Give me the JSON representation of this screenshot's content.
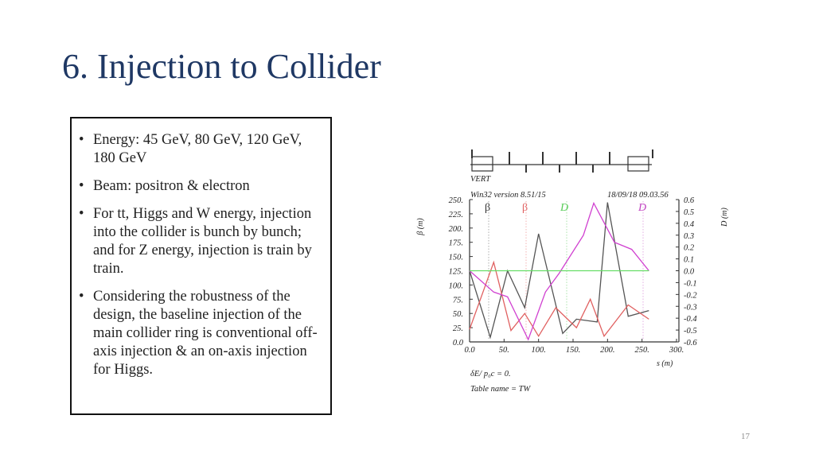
{
  "slide": {
    "title": "6. Injection to Collider",
    "page_number": "17"
  },
  "bullets": [
    "Energy: 45 GeV, 80 GeV, 120 GeV, 180 GeV",
    "Beam: positron & electron",
    "For tt, Higgs and W energy, injection into the collider is bunch by bunch; and for Z energy, injection is train by train.",
    "Considering the robustness of the design, the baseline injection of the main collider ring is conventional off-axis injection & an on-axis injection for Higgs."
  ],
  "figure": {
    "plane": "VERT",
    "version": "Win32 version 8.51/15",
    "timestamp": "18/09/18  09.03.56",
    "legend": [
      "β",
      "β",
      "D",
      "D"
    ],
    "footer_line1": "δE/ p₀c  =  0.",
    "footer_line2": "Table name  =  TW"
  },
  "chart_data": {
    "type": "line",
    "title": "",
    "xlabel": "s (m)",
    "ylabel": "β (m)",
    "y2label": "D (m)",
    "xlim": [
      0,
      300
    ],
    "ylim": [
      0,
      250
    ],
    "y2lim": [
      -0.6,
      0.6
    ],
    "x_ticks": [
      "0.0",
      "50.",
      "100.",
      "150.",
      "200.",
      "250.",
      "300."
    ],
    "y_ticks": [
      "0.0",
      "25.",
      "50.",
      "75.",
      "100.",
      "125.",
      "150.",
      "175.",
      "200.",
      "225.",
      "250."
    ],
    "y2_ticks": [
      "-0.6",
      "-0.5",
      "-0.4",
      "-0.3",
      "-0.2",
      "-0.1",
      "0.0",
      "0.1",
      "0.2",
      "0.3",
      "0.4",
      "0.5",
      "0.6"
    ],
    "series": [
      {
        "name": "beta_x",
        "color": "#555555",
        "axis": "left",
        "x": [
          0,
          30,
          55,
          80,
          100,
          135,
          155,
          185,
          200,
          230,
          260
        ],
        "y": [
          125,
          8,
          125,
          60,
          190,
          15,
          40,
          35,
          245,
          45,
          55
        ]
      },
      {
        "name": "beta_y",
        "color": "#e06060",
        "axis": "left",
        "x": [
          0,
          35,
          60,
          80,
          100,
          125,
          155,
          175,
          195,
          230,
          260
        ],
        "y": [
          22,
          140,
          20,
          50,
          10,
          60,
          25,
          75,
          10,
          65,
          40
        ]
      },
      {
        "name": "Dx",
        "color": "#d040d0",
        "axis": "right",
        "x": [
          0,
          35,
          55,
          85,
          110,
          130,
          165,
          180,
          210,
          235,
          260
        ],
        "y": [
          0.0,
          -0.18,
          -0.22,
          -0.58,
          -0.18,
          -0.02,
          0.3,
          0.57,
          0.24,
          0.18,
          0.0
        ]
      },
      {
        "name": "Dy",
        "color": "#66dd66",
        "axis": "right",
        "x": [
          0,
          260
        ],
        "y": [
          0.0,
          0.0
        ]
      }
    ]
  }
}
